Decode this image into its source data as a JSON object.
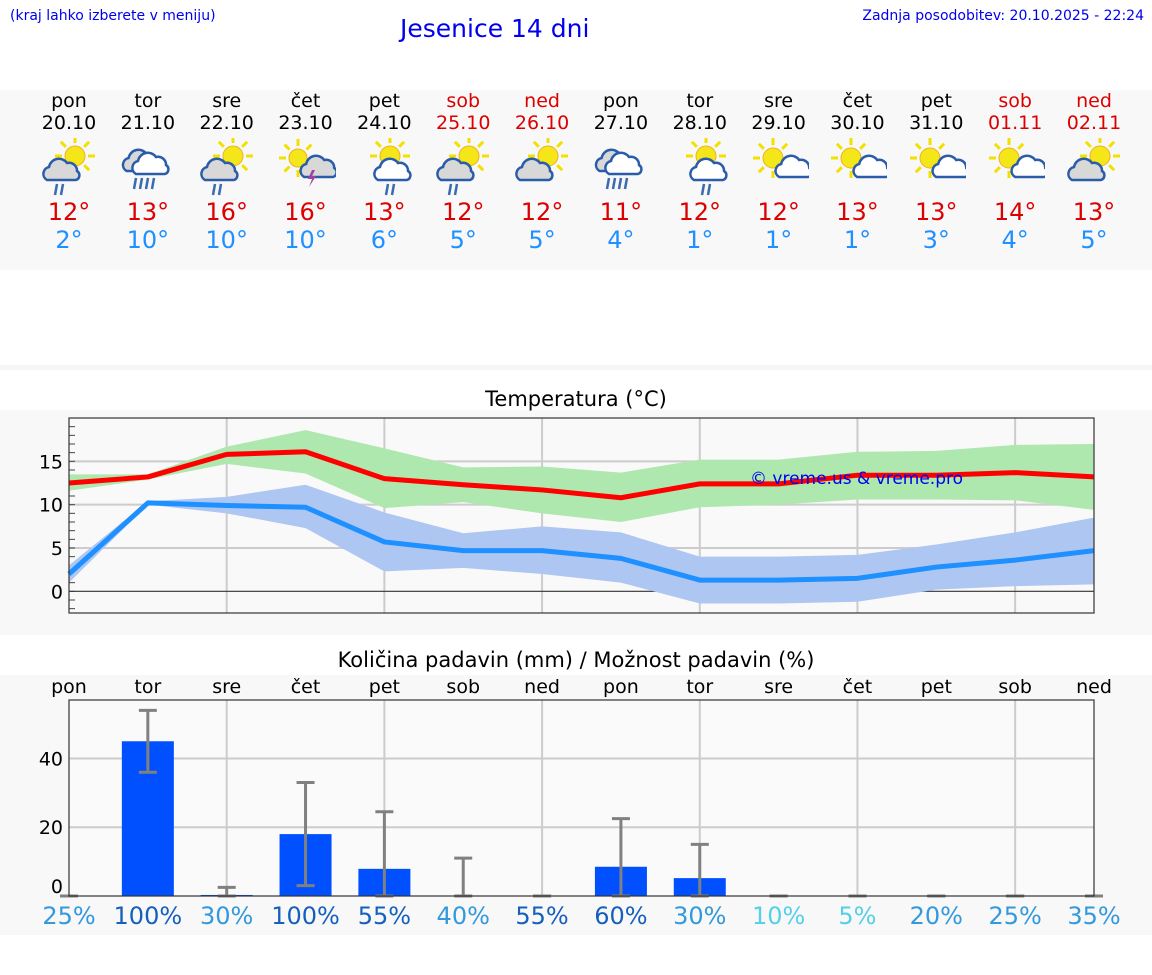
{
  "header": {
    "hint": "(kraj lahko izberete v meniju)",
    "title": "Jesenice 14 dni",
    "updated": "Zadnja posodobitev: 20.10.2025 - 22:24"
  },
  "days": [
    {
      "name": "pon",
      "date": "20.10",
      "icon": "sun-cloud-rain",
      "max": "12°",
      "min": "2°",
      "weekend": false
    },
    {
      "name": "tor",
      "date": "21.10",
      "icon": "cloud-heavy-rain",
      "max": "13°",
      "min": "10°",
      "weekend": false
    },
    {
      "name": "sre",
      "date": "22.10",
      "icon": "sun-cloud-rain",
      "max": "16°",
      "min": "10°",
      "weekend": false
    },
    {
      "name": "čet",
      "date": "23.10",
      "icon": "sun-thunderstorm",
      "max": "16°",
      "min": "10°",
      "weekend": false
    },
    {
      "name": "pet",
      "date": "24.10",
      "icon": "sun-white-cloud-rain",
      "max": "13°",
      "min": "6°",
      "weekend": false
    },
    {
      "name": "sob",
      "date": "25.10",
      "icon": "sun-cloud-rain",
      "max": "12°",
      "min": "5°",
      "weekend": true
    },
    {
      "name": "ned",
      "date": "26.10",
      "icon": "sun-cloud",
      "max": "12°",
      "min": "5°",
      "weekend": true
    },
    {
      "name": "pon",
      "date": "27.10",
      "icon": "cloud-heavy-rain",
      "max": "11°",
      "min": "4°",
      "weekend": false
    },
    {
      "name": "tor",
      "date": "28.10",
      "icon": "sun-white-cloud-rain",
      "max": "12°",
      "min": "1°",
      "weekend": false
    },
    {
      "name": "sre",
      "date": "29.10",
      "icon": "sun-small-cloud",
      "max": "12°",
      "min": "1°",
      "weekend": false
    },
    {
      "name": "čet",
      "date": "30.10",
      "icon": "sun-small-cloud",
      "max": "13°",
      "min": "1°",
      "weekend": false
    },
    {
      "name": "pet",
      "date": "31.10",
      "icon": "sun-small-cloud",
      "max": "13°",
      "min": "3°",
      "weekend": false
    },
    {
      "name": "sob",
      "date": "01.11",
      "icon": "sun-small-cloud",
      "max": "14°",
      "min": "4°",
      "weekend": true
    },
    {
      "name": "ned",
      "date": "02.11",
      "icon": "sun-cloud",
      "max": "13°",
      "min": "5°",
      "weekend": true
    }
  ],
  "chart_data": [
    {
      "type": "line",
      "title": "Temperatura (°C)",
      "watermark": "© vreme.us & vreme.pro",
      "ylim": [
        -2.5,
        20
      ],
      "yticks": [
        0,
        5,
        10,
        15
      ],
      "grid": true,
      "series": [
        {
          "name": "max",
          "color": "#ff0000",
          "values": [
            12.5,
            13.2,
            15.8,
            16.1,
            13.0,
            12.3,
            11.7,
            10.8,
            12.4,
            12.4,
            13.4,
            13.4,
            13.7,
            13.2
          ],
          "band_upper": [
            13.5,
            13.5,
            16.7,
            18.6,
            16.5,
            14.3,
            14.4,
            13.7,
            15.2,
            15.2,
            16.1,
            16.2,
            16.9,
            17.0
          ],
          "band_lower": [
            11.6,
            12.9,
            14.7,
            13.6,
            9.6,
            10.3,
            9.0,
            8.0,
            9.7,
            10.0,
            10.6,
            10.6,
            10.5,
            9.4
          ],
          "band_color": "#aee8ae"
        },
        {
          "name": "min",
          "color": "#1e90ff",
          "values": [
            2.0,
            10.2,
            9.9,
            9.7,
            5.7,
            4.7,
            4.7,
            3.8,
            1.3,
            1.3,
            1.5,
            2.8,
            3.6,
            4.7
          ],
          "band_upper": [
            3.0,
            10.4,
            10.9,
            12.3,
            9.1,
            6.7,
            7.5,
            6.8,
            4.0,
            4.0,
            4.2,
            5.4,
            6.8,
            8.5
          ],
          "band_lower": [
            1.0,
            10.0,
            9.0,
            7.3,
            2.3,
            2.7,
            2.0,
            1.0,
            -1.4,
            -1.4,
            -1.2,
            0.2,
            0.6,
            0.8
          ],
          "band_color": "#aec6f2"
        }
      ]
    },
    {
      "type": "bar",
      "title": "Količina padavin (mm) / Možnost padavin (%)",
      "categories": [
        "pon",
        "tor",
        "sre",
        "čet",
        "pet",
        "sob",
        "ned",
        "pon",
        "tor",
        "sre",
        "čet",
        "pet",
        "sob",
        "ned"
      ],
      "ylim": [
        0,
        57
      ],
      "yticks": [
        0,
        20,
        40
      ],
      "values": [
        0,
        45,
        0.3,
        18,
        7.9,
        0,
        0,
        8.5,
        5.2,
        0,
        0,
        0,
        0,
        0
      ],
      "err_low": [
        0,
        36,
        0,
        3,
        0,
        0,
        0,
        0,
        0,
        0,
        0,
        0,
        0,
        0
      ],
      "err_high": [
        0,
        54,
        2.5,
        33,
        24.5,
        11,
        0,
        22.5,
        15,
        0,
        0,
        0,
        0,
        0
      ],
      "bar_color": "#0050ff",
      "probability": [
        "25%",
        "100%",
        "30%",
        "100%",
        "55%",
        "40%",
        "55%",
        "60%",
        "30%",
        "10%",
        "5%",
        "20%",
        "25%",
        "35%"
      ],
      "probability_values": [
        25,
        100,
        30,
        100,
        55,
        40,
        55,
        60,
        30,
        10,
        5,
        20,
        25,
        35
      ]
    }
  ]
}
